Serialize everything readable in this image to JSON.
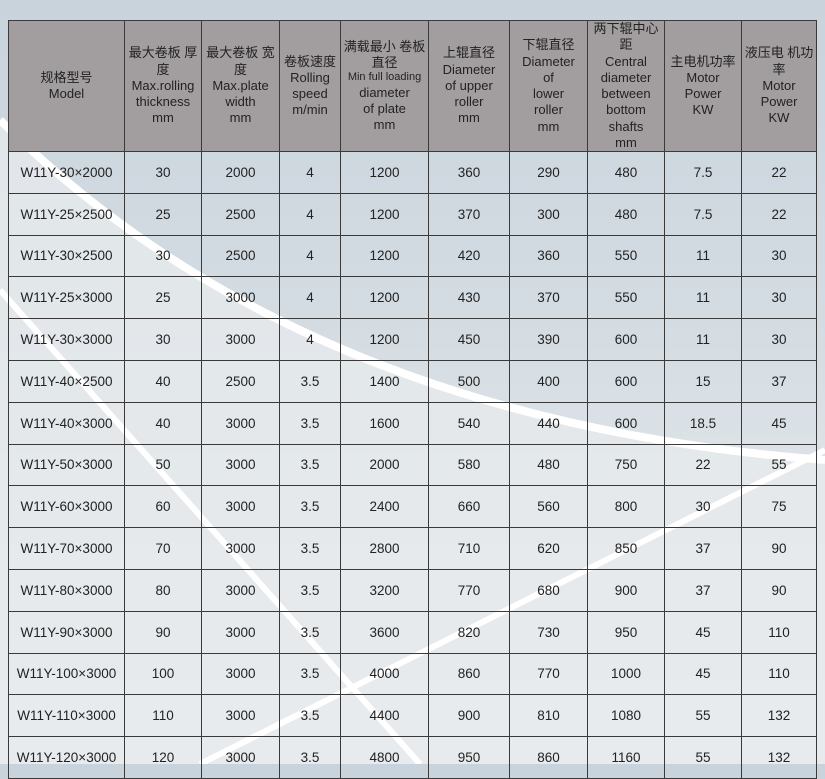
{
  "headers": [
    {
      "zh": "规格型号",
      "en": [
        "Model"
      ]
    },
    {
      "zh": "最大卷板 厚度",
      "en": [
        "Max.rolling",
        "thickness",
        "mm"
      ]
    },
    {
      "zh": "最大卷板 宽度",
      "en": [
        "Max.plate",
        "width",
        "mm"
      ]
    },
    {
      "zh": "卷板速度",
      "en": [
        "Rolling",
        "speed",
        "m/min"
      ]
    },
    {
      "zh": "满载最小 卷板直径",
      "en": [
        "Min full loading",
        "diameter",
        "of plate",
        "mm"
      ]
    },
    {
      "zh": "上辊直径",
      "en": [
        "Diameter",
        "of upper",
        "roller",
        "mm"
      ]
    },
    {
      "zh": "下辊直径",
      "en": [
        "Diameter",
        "of",
        "lower",
        "roller",
        "mm"
      ]
    },
    {
      "zh": "两下辊中心距",
      "en": [
        "Central",
        "diameter",
        "between",
        "bottom shafts",
        "mm"
      ]
    },
    {
      "zh": "主电机功率",
      "en": [
        "Motor",
        "Power",
        "KW"
      ]
    },
    {
      "zh": "液压电 机功率",
      "en": [
        "Motor",
        "Power",
        "KW"
      ]
    }
  ],
  "rows": [
    [
      "W11Y-30×2000",
      "30",
      "2000",
      "4",
      "1200",
      "360",
      "290",
      "480",
      "7.5",
      "22"
    ],
    [
      "W11Y-25×2500",
      "25",
      "2500",
      "4",
      "1200",
      "370",
      "300",
      "480",
      "7.5",
      "22"
    ],
    [
      "W11Y-30×2500",
      "30",
      "2500",
      "4",
      "1200",
      "420",
      "360",
      "550",
      "11",
      "30"
    ],
    [
      "W11Y-25×3000",
      "25",
      "3000",
      "4",
      "1200",
      "430",
      "370",
      "550",
      "11",
      "30"
    ],
    [
      "W11Y-30×3000",
      "30",
      "3000",
      "4",
      "1200",
      "450",
      "390",
      "600",
      "11",
      "30"
    ],
    [
      "W11Y-40×2500",
      "40",
      "2500",
      "3.5",
      "1400",
      "500",
      "400",
      "600",
      "15",
      "37"
    ],
    [
      "W11Y-40×3000",
      "40",
      "3000",
      "3.5",
      "1600",
      "540",
      "440",
      "600",
      "18.5",
      "45"
    ],
    [
      "W11Y-50×3000",
      "50",
      "3000",
      "3.5",
      "2000",
      "580",
      "480",
      "750",
      "22",
      "55"
    ],
    [
      "W11Y-60×3000",
      "60",
      "3000",
      "3.5",
      "2400",
      "660",
      "560",
      "800",
      "30",
      "75"
    ],
    [
      "W11Y-70×3000",
      "70",
      "3000",
      "3.5",
      "2800",
      "710",
      "620",
      "850",
      "37",
      "90"
    ],
    [
      "W11Y-80×3000",
      "80",
      "3000",
      "3.5",
      "3200",
      "770",
      "680",
      "900",
      "37",
      "90"
    ],
    [
      "W11Y-90×3000",
      "90",
      "3000",
      "3.5",
      "3600",
      "820",
      "730",
      "950",
      "45",
      "110"
    ],
    [
      "W11Y-100×3000",
      "100",
      "3000",
      "3.5",
      "4000",
      "860",
      "770",
      "1000",
      "45",
      "110"
    ],
    [
      "W11Y-110×3000",
      "110",
      "3000",
      "3.5",
      "4400",
      "900",
      "810",
      "1080",
      "55",
      "132"
    ],
    [
      "W11Y-120×3000",
      "120",
      "3000",
      "3.5",
      "4800",
      "950",
      "860",
      "1160",
      "55",
      "132"
    ]
  ]
}
